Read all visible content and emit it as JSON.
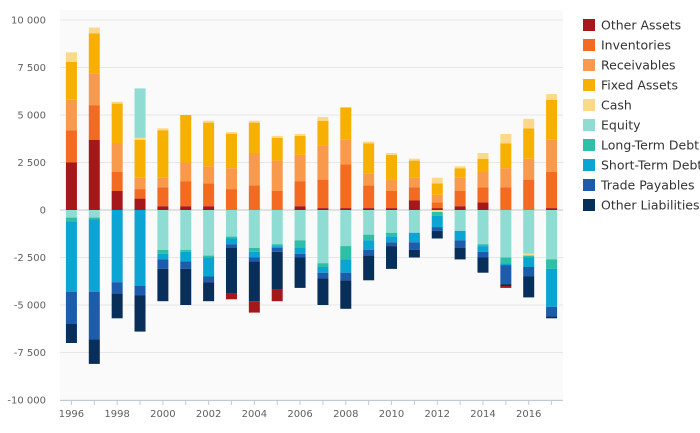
{
  "chart_data": {
    "type": "bar",
    "stacked": true,
    "grid": true,
    "legend_position": "right",
    "x": [
      1996,
      1997,
      1998,
      1999,
      2000,
      2001,
      2002,
      2003,
      2004,
      2005,
      2006,
      2007,
      2008,
      2009,
      2010,
      2011,
      2012,
      2013,
      2014,
      2015,
      2016,
      2017
    ],
    "x_ticks": [
      "1996",
      "1998",
      "2000",
      "2002",
      "2004",
      "2006",
      "2008",
      "2010",
      "2012",
      "2014",
      "2016"
    ],
    "ylim": [
      -10000,
      10000
    ],
    "y_ticks": [
      {
        "value": 10000,
        "label": "10 000"
      },
      {
        "value": 7500,
        "label": "7 500"
      },
      {
        "value": 5000,
        "label": "5 000"
      },
      {
        "value": 2500,
        "label": "2 500"
      },
      {
        "value": 0,
        "label": "0"
      },
      {
        "value": -2500,
        "label": "-2 500"
      },
      {
        "value": -5000,
        "label": "-5 000"
      },
      {
        "value": -7500,
        "label": "-7 500"
      },
      {
        "value": -10000,
        "label": "-10 000"
      }
    ],
    "series": [
      {
        "name": "Other Assets",
        "color": "#a6171c",
        "values": [
          2500,
          3700,
          1000,
          600,
          200,
          200,
          200,
          0,
          0,
          0,
          200,
          100,
          100,
          100,
          100,
          500,
          100,
          200,
          400,
          0,
          0,
          100
        ]
      },
      {
        "name": "Inventories",
        "color": "#f26b21",
        "values": [
          1700,
          1800,
          1000,
          500,
          1000,
          1300,
          1200,
          1100,
          1300,
          1000,
          1300,
          1500,
          2300,
          1200,
          900,
          700,
          300,
          800,
          800,
          1200,
          1600,
          1900
        ]
      },
      {
        "name": "Receivables",
        "color": "#f8994c",
        "values": [
          1600,
          1700,
          1500,
          600,
          500,
          1000,
          900,
          1100,
          1700,
          1600,
          1400,
          1800,
          1300,
          600,
          600,
          500,
          400,
          700,
          800,
          1000,
          1100,
          1700
        ]
      },
      {
        "name": "Fixed Assets",
        "color": "#f7b000",
        "values": [
          2000,
          2100,
          2100,
          2000,
          2500,
          2500,
          2300,
          1800,
          1600,
          1200,
          1000,
          1300,
          1700,
          1600,
          1300,
          900,
          600,
          500,
          700,
          1300,
          1600,
          2100
        ]
      },
      {
        "name": "Cash",
        "color": "#fcd98a",
        "values": [
          500,
          300,
          100,
          100,
          100,
          0,
          100,
          100,
          100,
          100,
          100,
          200,
          0,
          100,
          100,
          100,
          300,
          100,
          300,
          500,
          500,
          300
        ]
      },
      {
        "name": "Equity",
        "color": "#8fdcd3",
        "values": [
          0,
          0,
          0,
          2600,
          0,
          0,
          0,
          0,
          0,
          0,
          0,
          0,
          0,
          0,
          0,
          0,
          0,
          0,
          0,
          0,
          0,
          0
        ]
      }
    ],
    "negative_series": [
      {
        "name": "Equity",
        "color": "#8fdcd3",
        "values": [
          400,
          400,
          0,
          0,
          2100,
          2100,
          2400,
          1400,
          2000,
          1800,
          1600,
          2800,
          1900,
          1300,
          1200,
          1200,
          0,
          1100,
          1800,
          2500,
          2300,
          2600
        ]
      },
      {
        "name": "Cash",
        "color": "#fcd98a",
        "values": [
          0,
          0,
          0,
          0,
          0,
          0,
          0,
          0,
          0,
          0,
          0,
          0,
          0,
          0,
          0,
          0,
          100,
          0,
          0,
          0,
          100,
          0
        ]
      },
      {
        "name": "Long-Term Debt",
        "color": "#2fbfa6",
        "values": [
          200,
          100,
          0,
          0,
          200,
          100,
          100,
          100,
          200,
          100,
          400,
          200,
          700,
          300,
          200,
          0,
          200,
          0,
          100,
          300,
          100,
          500
        ]
      },
      {
        "name": "Short-Term Debt",
        "color": "#0ba5d3",
        "values": [
          3700,
          3800,
          3800,
          4000,
          300,
          500,
          1000,
          300,
          300,
          100,
          300,
          300,
          700,
          500,
          300,
          500,
          600,
          500,
          300,
          100,
          500,
          2000
        ]
      },
      {
        "name": "Trade Payables",
        "color": "#1d5cac",
        "values": [
          1700,
          2500,
          600,
          500,
          500,
          400,
          300,
          200,
          200,
          200,
          200,
          300,
          400,
          300,
          200,
          400,
          200,
          400,
          300,
          1000,
          500,
          500
        ]
      },
      {
        "name": "Other Liabilities",
        "color": "#072f5a",
        "values": [
          1000,
          1300,
          1300,
          1900,
          1700,
          1900,
          1000,
          2400,
          2100,
          2000,
          1600,
          1400,
          1500,
          1300,
          1200,
          400,
          400,
          600,
          800,
          100,
          1100,
          100
        ]
      },
      {
        "name": "Other Assets",
        "color": "#a6171c",
        "values": [
          0,
          0,
          0,
          0,
          0,
          0,
          0,
          300,
          600,
          600,
          0,
          0,
          0,
          0,
          0,
          0,
          0,
          0,
          0,
          100,
          0,
          0
        ]
      }
    ],
    "legend": [
      {
        "name": "Other Assets",
        "color": "#a6171c"
      },
      {
        "name": "Inventories",
        "color": "#f26b21"
      },
      {
        "name": "Receivables",
        "color": "#f8994c"
      },
      {
        "name": "Fixed Assets",
        "color": "#f7b000"
      },
      {
        "name": "Cash",
        "color": "#fcd98a"
      },
      {
        "name": "Equity",
        "color": "#8fdcd3"
      },
      {
        "name": "Long-Term Debt",
        "color": "#2fbfa6"
      },
      {
        "name": "Short-Term Debt",
        "color": "#0ba5d3"
      },
      {
        "name": "Trade Payables",
        "color": "#1d5cac"
      },
      {
        "name": "Other Liabilities",
        "color": "#072f5a"
      }
    ]
  }
}
